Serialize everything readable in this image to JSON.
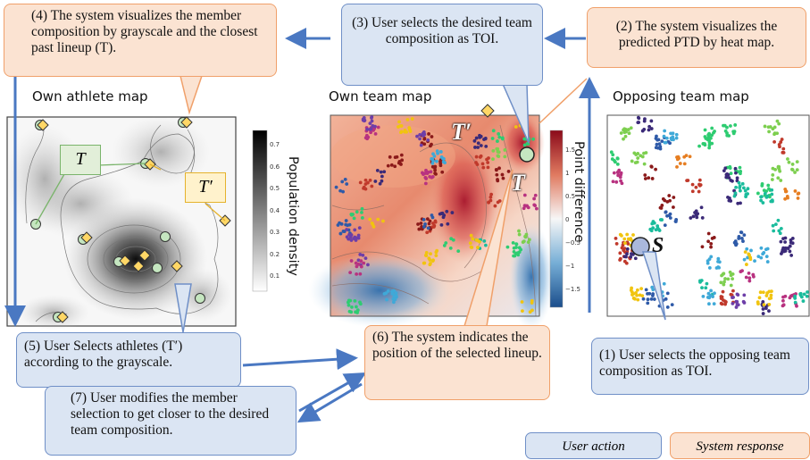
{
  "callouts": {
    "c1": "(1) User selects the opposing team composition as TOI.",
    "c2": "(2) The system visualizes the predicted PTD by heat map.",
    "c3": "(3) User selects the desired team composition as TOI.",
    "c4": "(4) The system visualizes the member composition by grayscale and the closest past lineup (T).",
    "c5": "(5) User Selects athletes (T′) according to the grayscale.",
    "c6": "(6) The system indicates the position of the selected lineup.",
    "c7": "(7) User modifies the  member selection to get closer to the desired team composition."
  },
  "maps": {
    "own_athlete": "Own athlete map",
    "own_team": "Own team map",
    "opposing_team": "Opposing team map"
  },
  "colorbars": {
    "density_label": "Population density",
    "density_ticks": [
      "0.7",
      "0.6",
      "0.5",
      "0.4",
      "0.3",
      "0.2",
      "0.1"
    ],
    "pd_label": "Point difference",
    "pd_ticks": [
      "1.5",
      "1",
      "0.5",
      "0",
      "−0.5",
      "−1",
      "−1.5"
    ]
  },
  "markers": {
    "T": "T",
    "T_prime": "T′",
    "S": "S"
  },
  "legend": {
    "user_action": "User action",
    "system_response": "System response"
  },
  "colors": {
    "user_fill": "#dbe5f3",
    "user_border": "#6f8fc7",
    "system_fill": "#fbe3d2",
    "system_border": "#f0a06a",
    "arrow": "#4a78c2",
    "tag_green": "#e2efd9",
    "tag_yellow": "#fff2cc"
  }
}
